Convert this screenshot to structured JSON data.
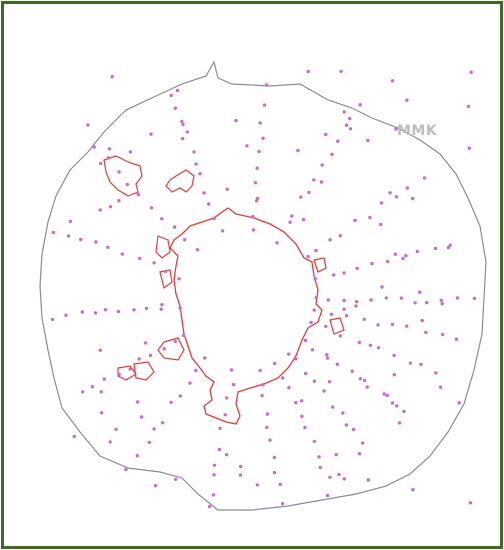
{
  "map": {
    "label": "MMK",
    "colors": {
      "frame": "#3d6b22",
      "outer_boundary": "#8a8a9a",
      "inner_boundary": "#e83a3a",
      "points": "#c86cc8",
      "label": "#bdbdbd"
    }
  }
}
